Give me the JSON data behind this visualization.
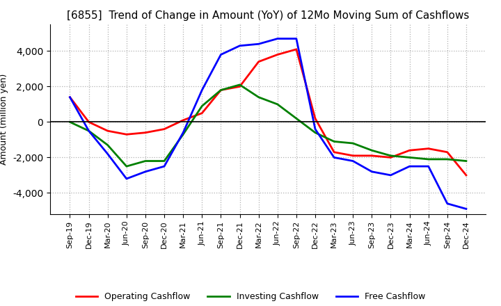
{
  "title": "[6855]  Trend of Change in Amount (YoY) of 12Mo Moving Sum of Cashflows",
  "ylabel": "Amount (million yen)",
  "xlabels": [
    "Sep-19",
    "Dec-19",
    "Mar-20",
    "Jun-20",
    "Sep-20",
    "Dec-20",
    "Mar-21",
    "Jun-21",
    "Sep-21",
    "Dec-21",
    "Mar-22",
    "Jun-22",
    "Sep-22",
    "Dec-22",
    "Mar-23",
    "Jun-23",
    "Sep-23",
    "Dec-23",
    "Mar-24",
    "Jun-24",
    "Sep-24",
    "Dec-24"
  ],
  "operating": [
    1400,
    0,
    -500,
    -700,
    -600,
    -400,
    100,
    500,
    1800,
    2000,
    3400,
    3800,
    4100,
    200,
    -1700,
    -1900,
    -1900,
    -2000,
    -1600,
    -1500,
    -1700,
    -3000
  ],
  "investing": [
    0,
    -500,
    -1300,
    -2500,
    -2200,
    -2200,
    -700,
    900,
    1800,
    2100,
    1400,
    1000,
    200,
    -600,
    -1100,
    -1200,
    -1600,
    -1900,
    -2000,
    -2100,
    -2100,
    -2200
  ],
  "free": [
    1400,
    -500,
    -1800,
    -3200,
    -2800,
    -2500,
    -600,
    1800,
    3800,
    4300,
    4400,
    4700,
    4700,
    -400,
    -2000,
    -2200,
    -2800,
    -3000,
    -2500,
    -2500,
    -4600,
    -4900
  ],
  "ylim": [
    -5200,
    5500
  ],
  "yticks": [
    -4000,
    -2000,
    0,
    2000,
    4000
  ],
  "operating_color": "#ff0000",
  "investing_color": "#008000",
  "free_color": "#0000ff",
  "background_color": "#ffffff",
  "grid_color": "#b0b0b0",
  "title_fontsize": 11,
  "legend_labels": [
    "Operating Cashflow",
    "Investing Cashflow",
    "Free Cashflow"
  ]
}
